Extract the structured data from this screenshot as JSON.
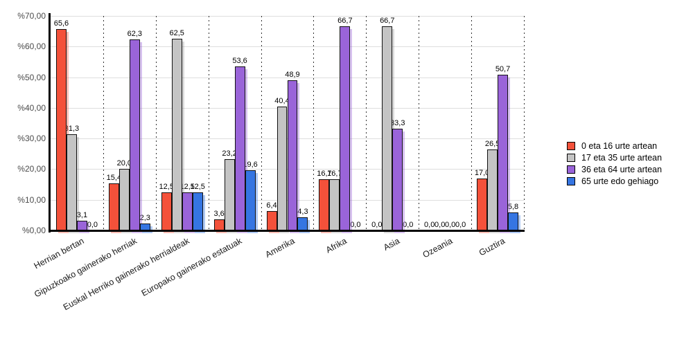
{
  "chart_data": {
    "type": "bar",
    "title": "",
    "categories": [
      "Herrian bertan",
      "Gipuzkoako gainerako herriak",
      "Euskal Herriko gainerako herrialdeak",
      "Europako gainerako estatuak",
      "Amerika",
      "Afrika",
      "Asia",
      "Ozeania",
      "Guztira"
    ],
    "series": [
      {
        "name": "0 eta 16 urte artean",
        "color": "#F4513A",
        "shadow": "rgba(244,81,58,0.38)",
        "values": [
          65.6,
          15.4,
          12.5,
          3.6,
          6.4,
          16.7,
          0.0,
          0.0,
          17.0
        ],
        "labels": [
          "65,6",
          "15,4",
          "12,5",
          "3,6",
          "6,4",
          "16,7",
          "0,0",
          "0,0",
          "17,0"
        ]
      },
      {
        "name": "17 eta 35 urte artean",
        "color": "#C4C4C4",
        "shadow": "rgba(120,120,120,0.28)",
        "values": [
          31.3,
          20.0,
          62.5,
          23.2,
          40.4,
          16.7,
          66.7,
          0.0,
          26.5
        ],
        "labels": [
          "31,3",
          "20,0",
          "62,5",
          "23,2",
          "40,4",
          "16,7",
          "66,7",
          "0,0",
          "26,5"
        ]
      },
      {
        "name": "36 eta 64 urte artean",
        "color": "#9A64D9",
        "shadow": "rgba(154,100,217,0.40)",
        "values": [
          3.1,
          62.3,
          12.5,
          53.6,
          48.9,
          66.7,
          33.3,
          0.0,
          50.7
        ],
        "labels": [
          "3,1",
          "62,3",
          "12,5",
          "53,6",
          "48,9",
          "66,7",
          "33,3",
          "0,0",
          "50,7"
        ]
      },
      {
        "name": "65 urte edo gehiago",
        "color": "#3575E2",
        "shadow": "rgba(53,117,226,0.40)",
        "values": [
          0.0,
          2.3,
          12.5,
          19.6,
          4.3,
          0.0,
          0.0,
          0.0,
          5.8
        ],
        "labels": [
          "0,0",
          "2,3",
          "12,5",
          "19,6",
          "4,3",
          "0,0",
          "0,0",
          "0,0",
          "5,8"
        ]
      }
    ],
    "y_axis": {
      "min": 0,
      "max": 70,
      "step": 10,
      "tick_labels": [
        "%0,00",
        "%10,00",
        "%20,00",
        "%30,00",
        "%40,00",
        "%50,00",
        "%60,00",
        "%70,00"
      ]
    },
    "legend_position": "right",
    "grid": true,
    "colors": {
      "background": "#FFFFFF",
      "axis": "#000000",
      "gridline": "#DEDEDE",
      "separator": "#333333",
      "tick_text": "#4A4A4A",
      "value_text": "#000000",
      "category_text": "#1A1A1A"
    }
  }
}
